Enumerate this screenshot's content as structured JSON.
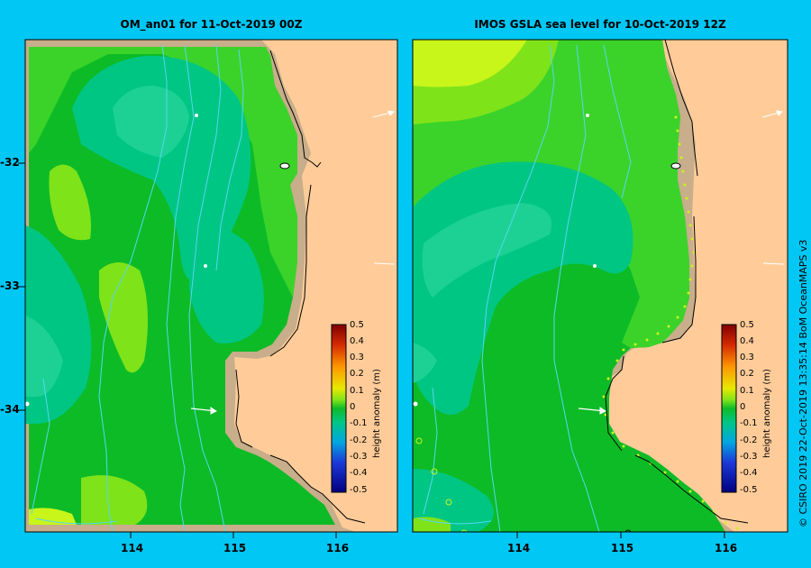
{
  "panels": [
    {
      "title": "OM_an01  for 11-Oct-2019 00Z"
    },
    {
      "title": "IMOS  GSLA sea level   for 10-Oct-2019 12Z"
    }
  ],
  "latitudes": [
    "-32",
    "-33",
    "-34"
  ],
  "longitudes": [
    "114",
    "115",
    "116"
  ],
  "colorbar": {
    "title": "height anomaly (m)",
    "ticks": [
      "0.5",
      "0.4",
      "0.3",
      "0.2",
      "0.1",
      "0",
      "-0.1",
      "-0.2",
      "-0.3",
      "-0.4",
      "-0.5"
    ]
  },
  "credit": "© CSIRO 2019    22-Oct-2019 13:35:14 BoM OceanMAPS v3",
  "colors": {
    "background": "#00c7f4",
    "land": "#ffcc99",
    "shelf": "#c8ae8a",
    "green": "#0dbb27",
    "light_green": "#3bd32a",
    "cyan_green": "#00c684",
    "lime": "#7fe31a",
    "yellow_green": "#c8f51a",
    "contour": "#56d6f2"
  }
}
